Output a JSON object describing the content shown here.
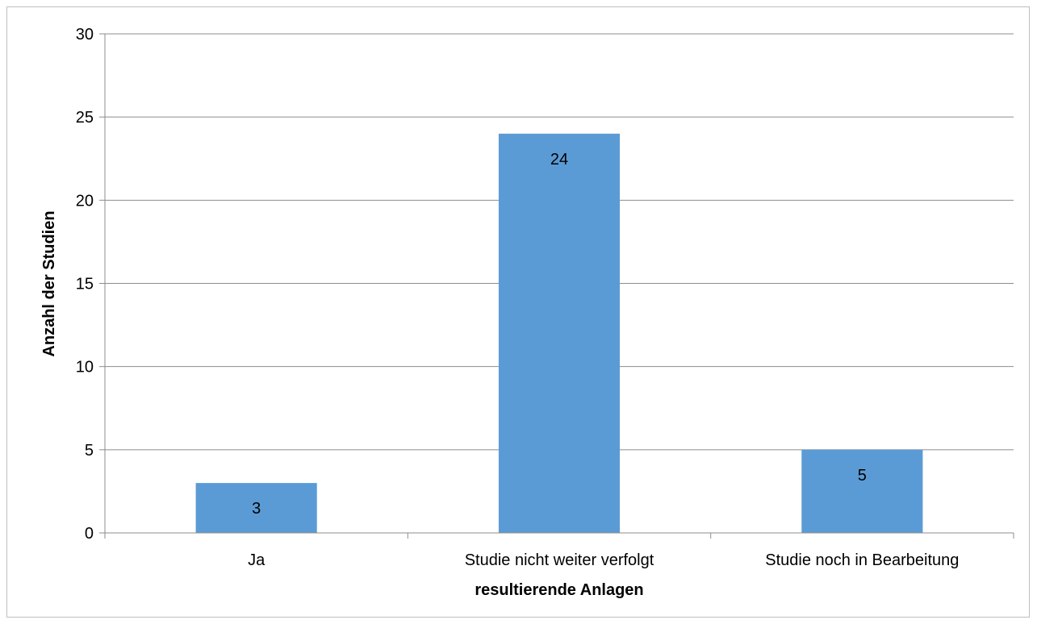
{
  "chart_data": {
    "type": "bar",
    "categories": [
      "Ja",
      "Studie nicht weiter verfolgt",
      "Studie noch in Bearbeitung"
    ],
    "values": [
      3,
      24,
      5
    ],
    "title": "",
    "xlabel": "resultierende Anlagen",
    "ylabel": "Anzahl der Studien",
    "ylim": [
      0,
      30
    ],
    "yticks": [
      0,
      5,
      10,
      15,
      20,
      25,
      30
    ],
    "grid": true,
    "data_labels": true,
    "colors": {
      "bar": "#5b9bd5",
      "grid": "#8c8c8c",
      "axis": "#8c8c8c"
    }
  }
}
